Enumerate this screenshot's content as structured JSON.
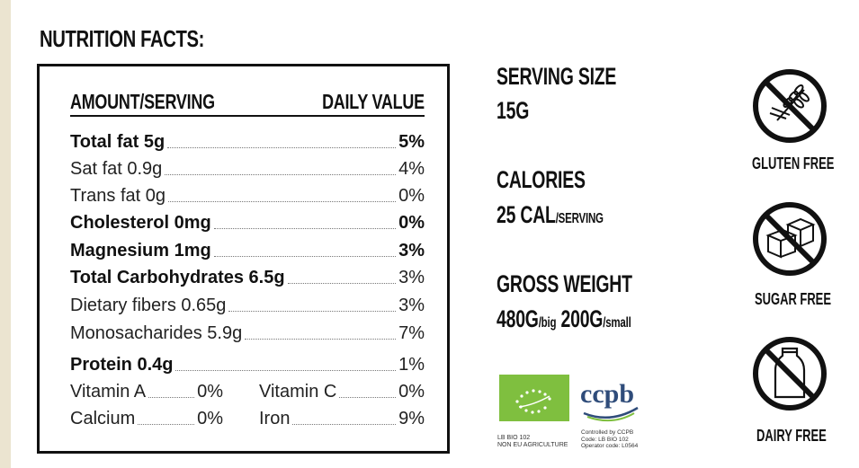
{
  "title": "NUTRITION FACTS:",
  "table": {
    "header_left": "AMOUNT/SERVING",
    "header_right": "DAILY VALUE",
    "rows": [
      {
        "label": "Total fat 5g",
        "value": "5%"
      },
      {
        "label": "Sat fat 0.9g",
        "value": "4%"
      },
      {
        "label": "Trans fat 0g",
        "value": "0%"
      },
      {
        "label": "Cholesterol 0mg",
        "value": "0%"
      },
      {
        "label": "Magnesium 1mg",
        "value": "3%"
      },
      {
        "label": "Total Carbohydrates 6.5g",
        "value": "3%"
      },
      {
        "label": "Dietary fibers 0.65g",
        "value": "3%"
      },
      {
        "label": "Monosacharides 5.9g",
        "value": "7%"
      },
      {
        "label": "Protein 0.4g",
        "value": "1%"
      }
    ],
    "pairs": [
      {
        "left_label": "Vitamin A",
        "left_value": "0%",
        "right_label": "Vitamin C",
        "right_value": "0%"
      },
      {
        "left_label": "Calcium",
        "left_value": "0%",
        "right_label": "Iron",
        "right_value": "9%"
      }
    ]
  },
  "serving": {
    "label": "SERVING SIZE",
    "value": "15G"
  },
  "calories": {
    "label": "CALORIES",
    "value": "25 CAL",
    "unit": "/SERVING"
  },
  "gross_weight": {
    "label": "GROSS WEIGHT",
    "big_value": "480G",
    "big_unit": "/big",
    "small_value": "200G",
    "small_unit": "/small"
  },
  "certifications": {
    "eu_caption_1": "LB BIO 102",
    "eu_caption_2": "NON EU AGRICULTURE",
    "ccpb_name": "ccpb",
    "ccpb_caption_1": "Controlled by CCPB",
    "ccpb_caption_2": "Code: LB BIO 102",
    "ccpb_caption_3": "Operator code: L0564"
  },
  "badges": [
    {
      "label": "GLUTEN FREE",
      "icon": "no-gluten-icon"
    },
    {
      "label": "SUGAR FREE",
      "icon": "no-sugar-icon"
    },
    {
      "label": "DAIRY FREE",
      "icon": "no-dairy-icon"
    }
  ],
  "colors": {
    "eu_green": "#7fbf3f",
    "ccpb_blue": "#2f4c7a",
    "stripe": "#ebe4d0"
  }
}
